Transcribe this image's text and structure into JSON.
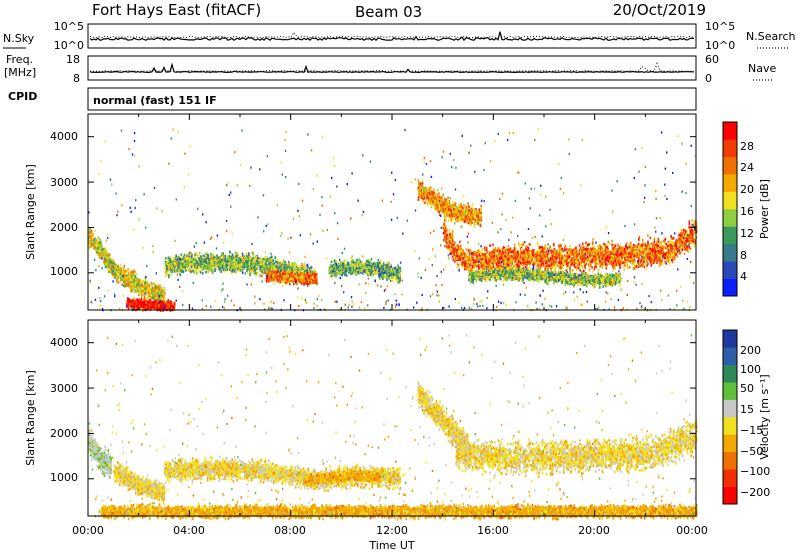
{
  "header": {
    "station": "Fort Hays East (fitACF)",
    "beam": "Beam 03",
    "date": "20/Oct/2019"
  },
  "strips": {
    "noise": {
      "left_label": "N.Sky",
      "right_label": "N.Search",
      "left_ticks": [
        "10^5",
        "10^0"
      ],
      "right_ticks": [
        "10^5",
        "10^0"
      ]
    },
    "freq": {
      "left_label_1": "Freq.",
      "left_label_2": "[MHz]",
      "right_label": "Nave",
      "left_ticks": [
        "18",
        "8"
      ],
      "right_ticks": [
        "60",
        "0"
      ]
    },
    "cpid": {
      "label": "CPID",
      "text": "normal (fast) 151 IF"
    }
  },
  "axes": {
    "ylabel": "Slant Range [km]",
    "xlabel": "Time UT",
    "yticks": [
      "1000",
      "2000",
      "3000",
      "4000"
    ],
    "xticks": [
      "00:00",
      "04:00",
      "08:00",
      "12:00",
      "16:00",
      "20:00",
      "00:00"
    ]
  },
  "colorbars": {
    "power": {
      "label": "Power [dB]",
      "ticks": [
        "4",
        "8",
        "12",
        "16",
        "20",
        "24",
        "28"
      ],
      "colors": [
        "#0a1eff",
        "#2a48b8",
        "#377a8a",
        "#3a9a5c",
        "#8cd040",
        "#f2e020",
        "#f5a800",
        "#f07000",
        "#f03c00",
        "#ff0000"
      ]
    },
    "velocity": {
      "label": "Velocity [m s⁻¹]",
      "ticks": [
        "200",
        "100",
        "50",
        "15",
        "−15",
        "−50",
        "−100",
        "−200"
      ],
      "colors": [
        "#1f3a9e",
        "#2f5fa8",
        "#2f8a5a",
        "#5fbf3a",
        "#c8c8c8",
        "#f2e020",
        "#f2a800",
        "#f07000",
        "#f03000",
        "#ff0000"
      ]
    }
  },
  "chart_data": {
    "type": "heatmap",
    "title": "Fort Hays East (fitACF)",
    "xlabel": "Time UT",
    "ylabel": "Slant Range [km]",
    "x_range_hours": [
      0,
      24
    ],
    "y_range_km": [
      180,
      4500
    ],
    "panels": [
      {
        "name": "Power [dB]",
        "scale": [
          0,
          32
        ],
        "bands": [
          {
            "name": "early_echo",
            "t": [
              0.0,
              0.5,
              1.0,
              1.5,
              2.0,
              2.5,
              3.0
            ],
            "range_km": [
              1850,
              1500,
              1100,
              900,
              750,
              600,
              500
            ],
            "width_km": 200,
            "value_db": 18
          },
          {
            "name": "near_range_red",
            "t": [
              1.5,
              2.0,
              2.5,
              3.0,
              3.4
            ],
            "range_km": [
              360,
              330,
              310,
              300,
              300
            ],
            "width_km": 90,
            "value_db": 30
          },
          {
            "name": "mid_patch",
            "t": [
              3.0,
              4.0,
              5.0,
              6.0,
              7.0,
              8.0,
              9.0
            ],
            "range_km": [
              1150,
              1250,
              1250,
              1250,
              1200,
              1050,
              950
            ],
            "width_km": 180,
            "value_db": 14
          },
          {
            "name": "mid_patch_core",
            "t": [
              7.0,
              7.7,
              8.4,
              9.0
            ],
            "range_km": [
              950,
              920,
              900,
              900
            ],
            "width_km": 100,
            "value_db": 24
          },
          {
            "name": "late_patch",
            "t": [
              9.5,
              10.5,
              11.5,
              12.3
            ],
            "range_km": [
              1100,
              1150,
              1100,
              1000
            ],
            "width_km": 150,
            "value_db": 12
          },
          {
            "name": "arc_upper",
            "t": [
              13.0,
              13.5,
              14.0,
              14.5,
              15.0,
              15.5
            ],
            "range_km": [
              2900,
              2700,
              2500,
              2350,
              2300,
              2250
            ],
            "width_km": 200,
            "value_db": 22
          },
          {
            "name": "main_band",
            "t": [
              14.0,
              14.5,
              15.0,
              16.0,
              17.0,
              18.0,
              19.0,
              20.0,
              21.0,
              22.0,
              23.0,
              24.0
            ],
            "range_km": [
              2000,
              1450,
              1300,
              1300,
              1350,
              1350,
              1350,
              1400,
              1400,
              1450,
              1500,
              2000
            ],
            "width_km": 260,
            "value_db": 24
          },
          {
            "name": "lower_band",
            "t": [
              15.0,
              16.0,
              17.0,
              18.0,
              19.0,
              20.0,
              21.0
            ],
            "range_km": [
              950,
              1000,
              1000,
              950,
              900,
              850,
              900
            ],
            "width_km": 120,
            "value_db": 14
          }
        ]
      },
      {
        "name": "Velocity [m s-1]",
        "scale": [
          -250,
          250
        ],
        "bands": [
          {
            "name": "early_green",
            "t": [
              0.0,
              0.3,
              0.6,
              0.9
            ],
            "range_km": [
              1900,
              1600,
              1400,
              1300
            ],
            "width_km": 250,
            "value_ms": 40
          },
          {
            "name": "early_gray",
            "t": [
              1.0,
              1.5,
              2.0,
              2.5,
              3.0
            ],
            "range_km": [
              1200,
              1050,
              900,
              800,
              700
            ],
            "width_km": 180,
            "value_ms": 0
          },
          {
            "name": "mid_gray",
            "t": [
              3.0,
              5.0,
              7.0,
              9.0,
              10.5,
              12.3
            ],
            "range_km": [
              1200,
              1250,
              1200,
              1000,
              1100,
              1050
            ],
            "width_km": 200,
            "value_ms": 0
          },
          {
            "name": "mid_orange",
            "t": [
              8.5,
              9.5,
              10.5,
              11.5
            ],
            "range_km": [
              1000,
              1050,
              1100,
              1050
            ],
            "width_km": 90,
            "value_ms": -30
          },
          {
            "name": "near_range_orange",
            "t": [
              0.5,
              4.0,
              8.0,
              12.0,
              16.0,
              20.0,
              24.0
            ],
            "range_km": [
              300,
              300,
              300,
              300,
              300,
              300,
              300
            ],
            "width_km": 120,
            "value_ms": -30
          },
          {
            "name": "arc_gray",
            "t": [
              13.0,
              13.5,
              14.0,
              14.5,
              15.0
            ],
            "range_km": [
              2900,
              2600,
              2300,
              2000,
              1800
            ],
            "width_km": 250,
            "value_ms": 0
          },
          {
            "name": "main_gray",
            "t": [
              14.5,
              16.0,
              18.0,
              20.0,
              22.0,
              24.0
            ],
            "range_km": [
              1600,
              1500,
              1500,
              1550,
              1550,
              2000
            ],
            "width_km": 320,
            "value_ms": 0
          }
        ]
      }
    ]
  }
}
